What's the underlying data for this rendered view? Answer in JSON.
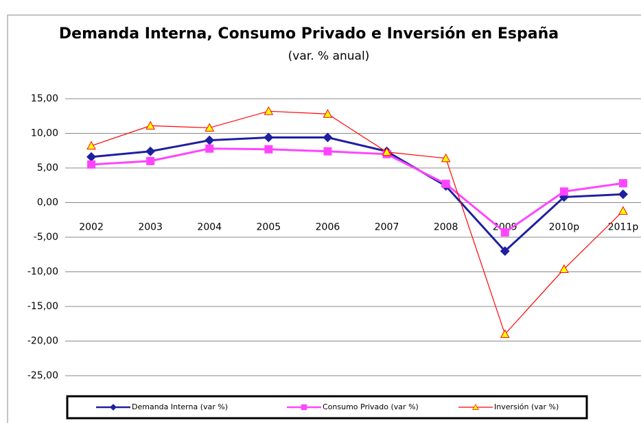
{
  "chart_data": {
    "type": "line",
    "title": "Demanda Interna, Consumo Privado e Inversión en España",
    "subtitle": "(var. % anual)",
    "categories": [
      "2002",
      "2003",
      "2004",
      "2005",
      "2006",
      "2007",
      "2008",
      "2009",
      "2010p",
      "2011p"
    ],
    "series": [
      {
        "name": "Demanda Interna (var %)",
        "color": "#1f1f9f",
        "marker": "diamond",
        "values": [
          6.6,
          7.4,
          9.0,
          9.4,
          9.4,
          7.4,
          2.4,
          -7.0,
          0.8,
          1.2
        ]
      },
      {
        "name": "Consumo Privado (var %)",
        "color": "#ff44ff",
        "marker": "square",
        "values": [
          5.5,
          6.0,
          7.8,
          7.7,
          7.4,
          7.0,
          2.7,
          -4.3,
          1.6,
          2.8
        ]
      },
      {
        "name": "Inversión (var %)",
        "color": "#ff0000",
        "marker": "triangle",
        "values": [
          8.2,
          11.1,
          10.8,
          13.2,
          12.8,
          7.3,
          6.4,
          -19.0,
          -9.6,
          -1.2
        ]
      }
    ],
    "ylim": [
      -25,
      15
    ],
    "yticks": [
      {
        "value": 15,
        "label": "15,00"
      },
      {
        "value": 10,
        "label": "10,00"
      },
      {
        "value": 5,
        "label": "5,00"
      },
      {
        "value": 0,
        "label": "0,00"
      },
      {
        "value": -5,
        "label": "-5,00"
      },
      {
        "value": -10,
        "label": "-10,00"
      },
      {
        "value": -15,
        "label": "-15,00"
      },
      {
        "value": -20,
        "label": "-20,00"
      },
      {
        "value": -25,
        "label": "-25,00"
      }
    ],
    "grid": true
  }
}
